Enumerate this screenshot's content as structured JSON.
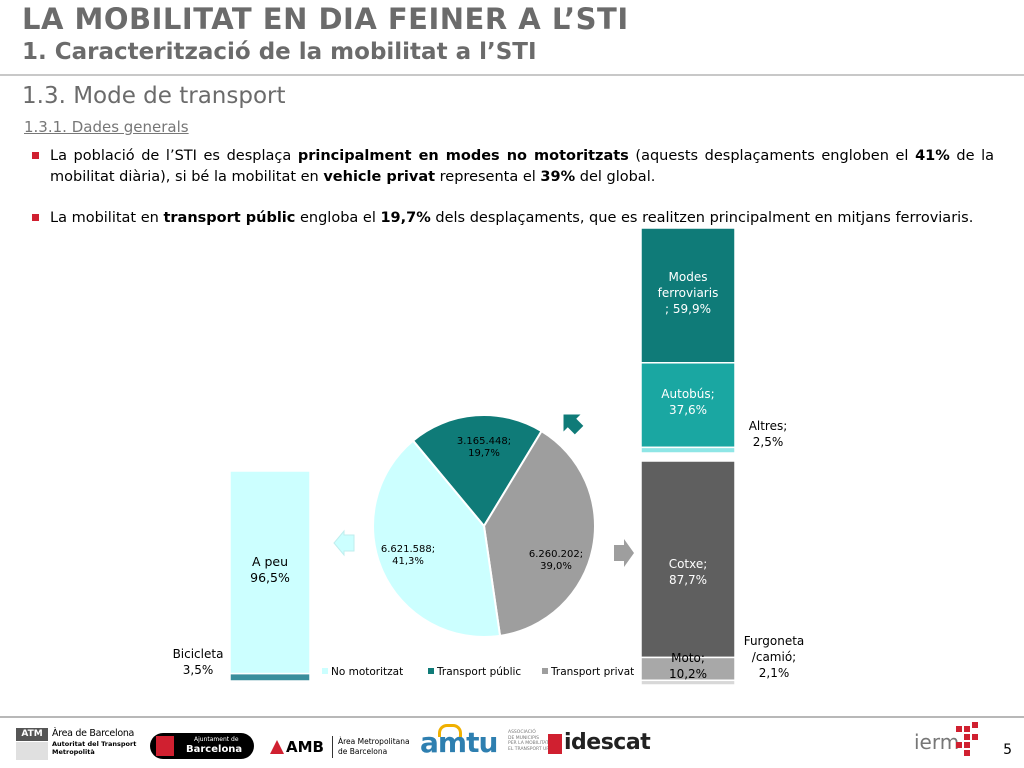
{
  "header": {
    "title": "LA MOBILITAT EN DIA FEINER A L’STI",
    "subtitle": "1. Caracterització de la mobilitat a l’STI",
    "section": "1.3. Mode de transport",
    "subsection": "1.3.1. Dades generals"
  },
  "bullets": [
    {
      "parts": [
        {
          "t": "La població de l’STI es desplaça ",
          "b": false
        },
        {
          "t": "principalment en modes no motoritzats",
          "b": true
        },
        {
          "t": " (aquests desplaçaments engloben el ",
          "b": false
        },
        {
          "t": "41%",
          "b": true
        },
        {
          "t": " de la mobilitat diària), si bé la mobilitat en ",
          "b": false
        },
        {
          "t": "vehicle privat",
          "b": true
        },
        {
          "t": " representa el ",
          "b": false
        },
        {
          "t": "39%",
          "b": true
        },
        {
          "t": " del global.",
          "b": false
        }
      ]
    },
    {
      "parts": [
        {
          "t": "La mobilitat en ",
          "b": false
        },
        {
          "t": "transport públic",
          "b": true
        },
        {
          "t": " engloba el ",
          "b": false
        },
        {
          "t": "19,7%",
          "b": true
        },
        {
          "t": " dels desplaçaments, que es realitzen principalment en mitjans ferroviaris.",
          "b": false
        }
      ]
    }
  ],
  "chart_data": [
    {
      "type": "pie",
      "slices": [
        {
          "name": "No motoritzat",
          "value": 6621588,
          "pct": 41.3,
          "label": "6.621.588;\n41,3%",
          "color": "#ccffff"
        },
        {
          "name": "Transport públic",
          "value": 3165448,
          "pct": 19.7,
          "label": "3.165.448;\n19,7%",
          "color": "#0f7b78"
        },
        {
          "name": "Transport privat",
          "value": 6260202,
          "pct": 39.0,
          "label": "6.260.202;\n39,0%",
          "color": "#9e9e9e"
        }
      ],
      "legend": [
        "No motoritzat",
        "Transport públic",
        "Transport privat"
      ],
      "legend_position": "bottom",
      "legend_colors": [
        "#ccffff",
        "#0f7b78",
        "#9e9e9e"
      ]
    },
    {
      "type": "bar",
      "stacked": true,
      "name": "No motoritzat",
      "segments": [
        {
          "name": "A peu",
          "pct": 96.5,
          "label_name": "A peu",
          "label_value": "96,5%",
          "color": "#ccffff"
        },
        {
          "name": "Bicicleta",
          "pct": 3.5,
          "label_name": "Bicicleta",
          "label_value": "3,5%",
          "color": "#3a8e9c"
        }
      ]
    },
    {
      "type": "bar",
      "stacked": true,
      "name": "Transport públic",
      "segments": [
        {
          "name": "Modes ferroviaris",
          "pct": 59.9,
          "label_name": "Modes\nferroviaris",
          "label_value": "; 59,9%",
          "color": "#0f7b78"
        },
        {
          "name": "Autobús",
          "pct": 37.6,
          "label_name": "Autobús;",
          "label_value": "37,6%",
          "color": "#1aa7a2"
        },
        {
          "name": "Altres",
          "pct": 2.5,
          "label_name": "Altres;",
          "label_value": "2,5%",
          "color": "#8fe6e6"
        }
      ]
    },
    {
      "type": "bar",
      "stacked": true,
      "name": "Transport privat",
      "segments": [
        {
          "name": "Cotxe",
          "pct": 87.7,
          "label_name": "Cotxe;",
          "label_value": "87,7%",
          "color": "#5f5f5f"
        },
        {
          "name": "Moto",
          "pct": 10.2,
          "label_name": "Moto;",
          "label_value": "10,2%",
          "color": "#a8a8a8"
        },
        {
          "name": "Furgoneta/camió",
          "pct": 2.1,
          "label_name": "Furgoneta\n/camió;",
          "label_value": "2,1%",
          "color": "#d8d8d8"
        }
      ]
    }
  ],
  "footer": {
    "logos": {
      "atm": {
        "badge": "ATM",
        "line1": "Àrea de Barcelona",
        "line2": "Autoritat del Transport",
        "line3": "Metropolità"
      },
      "ajuntament": {
        "line1": "Ajuntament de",
        "line2": "Barcelona"
      },
      "amb": {
        "name": "AMB",
        "line1": "Àrea Metropolitana",
        "line2": "de Barcelona"
      },
      "amtu": {
        "name": "amtu",
        "small1": "ASSOCIACIÓ",
        "small2": "DE MUNICIPIS",
        "small3": "PER LA MOBILITAT I",
        "small4": "EL TRANSPORT URBÀ"
      },
      "idescat": {
        "name": "idescat"
      },
      "iermb": {
        "name": "ierm"
      }
    },
    "page_number": "5"
  },
  "colors": {
    "title_gray": "#6b6b6b",
    "bullet_red": "#d02030",
    "teal_dark": "#0f7b78",
    "teal_light": "#ccffff",
    "gray": "#9e9e9e"
  }
}
